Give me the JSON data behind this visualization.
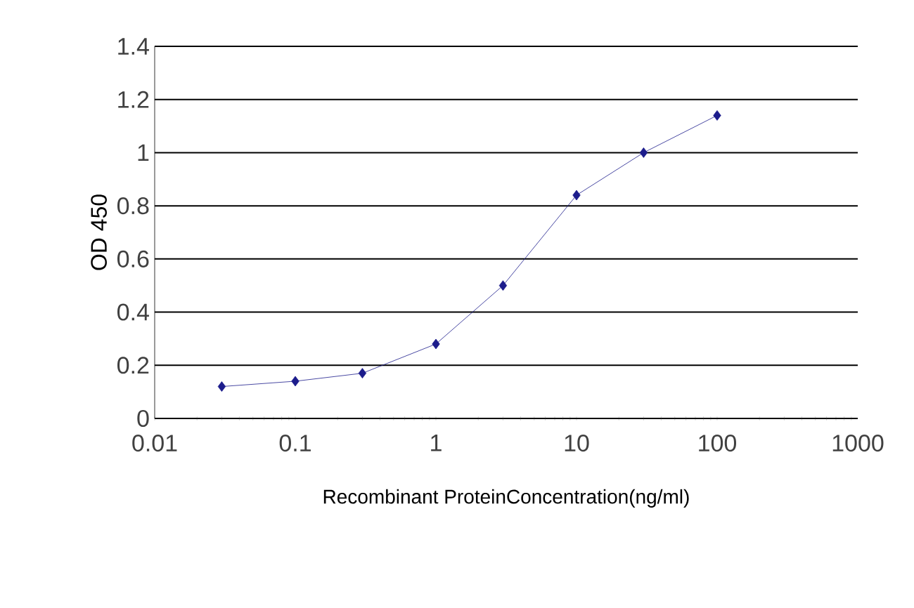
{
  "chart_data": {
    "type": "line",
    "xlabel": "Recombinant ProteinConcentration(ng/ml)",
    "ylabel": "OD 450",
    "log": "x",
    "grid": "y",
    "marker": "diamond",
    "line_style": "solid",
    "xlim": [
      0.01,
      1000
    ],
    "xticks": [
      0.01,
      0.1,
      1,
      10,
      100,
      1000
    ],
    "ylim": [
      0,
      1.4
    ],
    "yticks": [
      0,
      0.2,
      0.4,
      0.6,
      0.8,
      1,
      1.2,
      1.4
    ],
    "series": [
      {
        "color": "#1c1c8c",
        "x": [
          0.03,
          0.1,
          0.3,
          1,
          3,
          10,
          30,
          100
        ],
        "values": [
          0.12,
          0.14,
          0.17,
          0.28,
          0.5,
          0.84,
          1.0,
          1.14
        ]
      }
    ]
  }
}
